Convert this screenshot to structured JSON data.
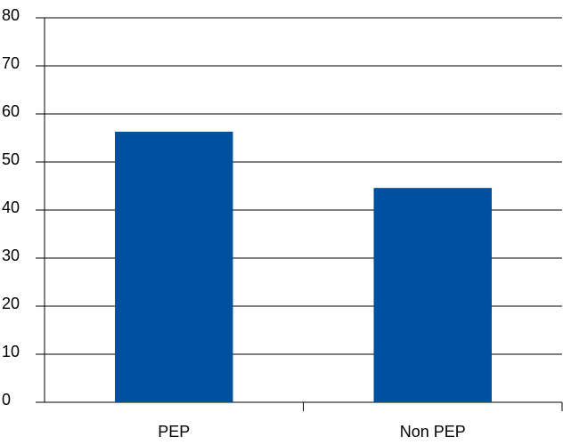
{
  "chart_data": {
    "type": "bar",
    "categories": [
      "PEP",
      "Non PEP"
    ],
    "values": [
      56.3,
      44.6
    ],
    "color": "#0050a0",
    "ylim": [
      0,
      80
    ],
    "yticks": [
      0,
      10,
      20,
      30,
      40,
      50,
      60,
      70,
      80
    ],
    "grid": true
  }
}
